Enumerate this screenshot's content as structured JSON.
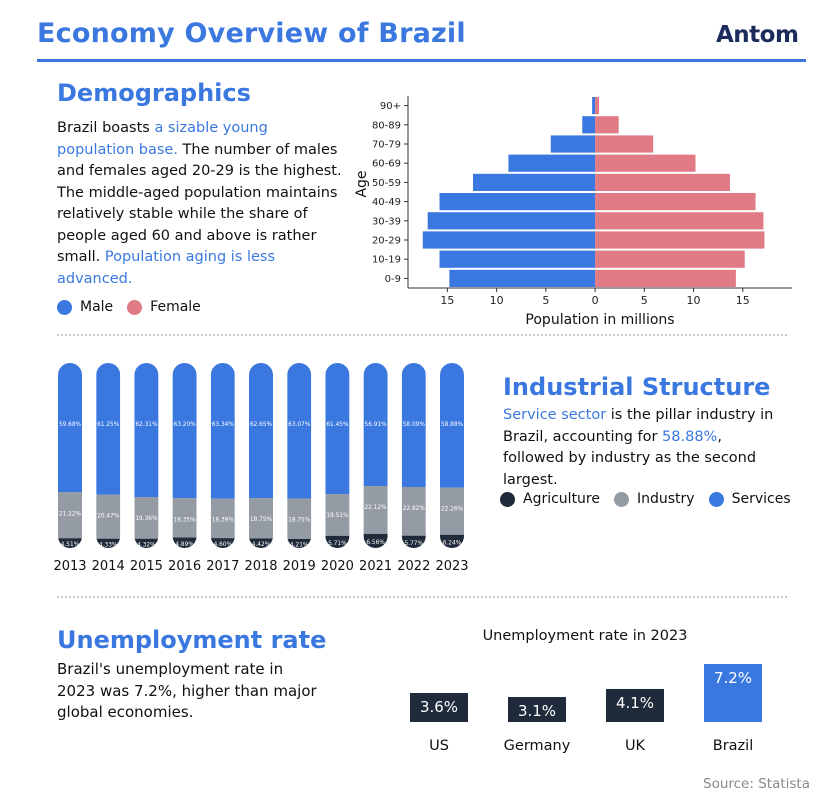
{
  "header": {
    "title": "Economy Overview of Brazil",
    "logo": "Antom"
  },
  "demographics": {
    "title": "Demographics",
    "text_parts": [
      {
        "t": "Brazil boasts ",
        "hl": false
      },
      {
        "t": "a sizable young population base.",
        "hl": true
      },
      {
        "t": " The number of males and females aged 20-29 is the highest. The middle-aged population maintains relatively stable while the share of people aged 60 and above is rather small. ",
        "hl": false
      },
      {
        "t": "Population aging is less advanced.",
        "hl": true
      }
    ],
    "legend": [
      {
        "label": "Male",
        "color": "#3a78e0"
      },
      {
        "label": "Female",
        "color": "#e07b86"
      }
    ]
  },
  "industry": {
    "title": "Industrial Structure",
    "text_parts": [
      {
        "t": "Service sector",
        "hl": true
      },
      {
        "t": " is the pillar industry in Brazil, accounting for ",
        "hl": false
      },
      {
        "t": "58.88%",
        "hl": true
      },
      {
        "t": ", followed by industry as the second largest.",
        "hl": false
      }
    ],
    "legend": [
      {
        "label": "Agriculture",
        "color": "#1f2a3a"
      },
      {
        "label": "Industry",
        "color": "#949ba5"
      },
      {
        "label": "Services",
        "color": "#3a78e0"
      }
    ]
  },
  "unemployment": {
    "title": "Unemployment rate",
    "text": "Brazil's unemployment rate in 2023 was 7.2%, higher than major global economies."
  },
  "source": "Source: Statista",
  "chart_data": [
    {
      "type": "bar",
      "orientation": "horizontal",
      "subtype": "population-pyramid",
      "categories": [
        "90+",
        "80-89",
        "70-79",
        "60-69",
        "50-59",
        "40-49",
        "30-39",
        "20-29",
        "10-19",
        "0-9"
      ],
      "series": [
        {
          "name": "Male",
          "color": "#3a78e0",
          "values": [
            0.3,
            1.3,
            4.5,
            8.8,
            12.4,
            15.8,
            17.0,
            17.5,
            15.8,
            14.8
          ]
        },
        {
          "name": "Female",
          "color": "#e07b86",
          "values": [
            0.4,
            2.4,
            5.9,
            10.2,
            13.7,
            16.3,
            17.1,
            17.2,
            15.2,
            14.3
          ]
        }
      ],
      "xlabel": "Population in millions",
      "ylabel": "Age",
      "xticks": [
        "15",
        "10",
        "5",
        "0",
        "5",
        "10",
        "15"
      ],
      "xlim": [
        -19,
        20
      ]
    },
    {
      "type": "bar",
      "subtype": "stacked-percent",
      "categories": [
        "2013",
        "2014",
        "2015",
        "2016",
        "2017",
        "2018",
        "2019",
        "2020",
        "2021",
        "2022",
        "2023"
      ],
      "series": [
        {
          "name": "Agriculture",
          "color": "#1f2a3a",
          "values": [
            4.51,
            4.33,
            4.32,
            4.89,
            4.6,
            4.42,
            4.21,
            5.71,
            6.56,
            5.77,
            6.24
          ],
          "labels": [
            "4.51%",
            "4.33%",
            "4.32%",
            "4.89%",
            "4.60%",
            "4.42%",
            "4.21%",
            "5.71%",
            "6.56%",
            "5.77%",
            "6.24%"
          ]
        },
        {
          "name": "Industry",
          "color": "#949ba5",
          "values": [
            21.22,
            20.47,
            19.36,
            18.35,
            18.39,
            18.75,
            18.75,
            19.51,
            22.12,
            22.82,
            22.26
          ],
          "labels": [
            "21.22%",
            "20.47%",
            "19.36%",
            "18.35%",
            "18.39%",
            "18.75%",
            "18.75%",
            "19.51%",
            "22.12%",
            "22.82%",
            "22.26%"
          ]
        },
        {
          "name": "Services",
          "color": "#3a78e0",
          "values": [
            59.68,
            61.25,
            62.31,
            63.2,
            63.34,
            62.65,
            63.07,
            61.45,
            56.91,
            58.09,
            58.88
          ],
          "labels": [
            "59.68%",
            "61.25%",
            "62.31%",
            "63.20%",
            "63.34%",
            "62.65%",
            "63.07%",
            "61.45%",
            "56.91%",
            "58.09%",
            "58.88%"
          ]
        }
      ]
    },
    {
      "type": "bar",
      "title": "Unemployment rate in 2023",
      "categories": [
        "US",
        "Germany",
        "UK",
        "Brazil"
      ],
      "values": [
        3.6,
        3.1,
        4.1,
        7.2
      ],
      "labels": [
        "3.6%",
        "3.1%",
        "4.1%",
        "7.2%"
      ],
      "colors": [
        "#1f2a3a",
        "#1f2a3a",
        "#1f2a3a",
        "#3a78e0"
      ],
      "ylim": [
        0,
        7.2
      ]
    }
  ]
}
